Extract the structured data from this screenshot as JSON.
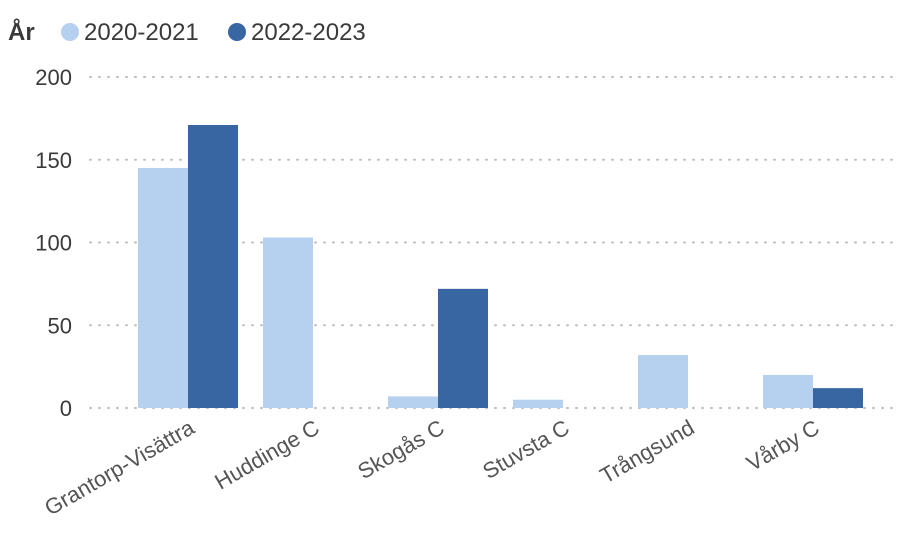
{
  "chart_data": {
    "type": "bar",
    "legend": {
      "title": "År",
      "placement": "top-left"
    },
    "categories": [
      "Grantorp-Visättra",
      "Huddinge C",
      "Skogås C",
      "Stuvsta C",
      "Trångsund",
      "Vårby C"
    ],
    "series": [
      {
        "name": "2020-2021",
        "color": "#b6d0ef",
        "values": [
          145,
          103,
          7,
          5,
          32,
          20
        ]
      },
      {
        "name": "2022-2023",
        "color": "#3766a3",
        "values": [
          171,
          null,
          72,
          null,
          null,
          12
        ]
      }
    ],
    "yticks": [
      0,
      50,
      100,
      150,
      200
    ],
    "ylim": [
      0,
      200
    ],
    "grid": true,
    "title": "",
    "xlabel": "",
    "ylabel": ""
  }
}
